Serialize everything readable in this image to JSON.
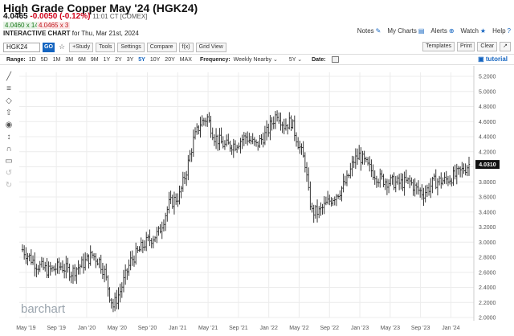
{
  "header": {
    "title": "High Grade Copper May '24 (HGK24)",
    "last": "4.0465",
    "change": "-0.0050 (-0.12%)",
    "time": "11:01 CT [COMEX]",
    "bid": "4.0460 x 14",
    "ask": "4.0465 x 3",
    "chart_label": "INTERACTIVE CHART",
    "chart_for": "for Thu, Mar 21st, 2024"
  },
  "top_links": [
    {
      "label": "Notes",
      "icon": "notes-icon"
    },
    {
      "label": "My Charts",
      "icon": "my-charts-icon"
    },
    {
      "label": "Alerts",
      "icon": "alerts-icon"
    },
    {
      "label": "Watch",
      "icon": "watch-icon"
    },
    {
      "label": "Help",
      "icon": "help-icon"
    }
  ],
  "toolbar": {
    "symbol": "HGK24",
    "go": "GO",
    "buttons": [
      "+Study",
      "Tools",
      "Settings",
      "Compare",
      "f(x)",
      "Grid View"
    ],
    "right_buttons": [
      "Templates",
      "Print",
      "Clear",
      "↗"
    ]
  },
  "range_bar": {
    "range_label": "Range:",
    "ranges": [
      "1D",
      "5D",
      "1M",
      "3M",
      "6M",
      "9M",
      "1Y",
      "2Y",
      "3Y",
      "5Y",
      "10Y",
      "20Y",
      "MAX"
    ],
    "active_range": "5Y",
    "frequency_label": "Frequency:",
    "frequency": "Weekly Nearby",
    "period": "5Y",
    "date_label": "Date:",
    "tutorial": "tutorial"
  },
  "draw_tools": [
    "line-tool-icon",
    "fib-tool-icon",
    "shape-tool-icon",
    "arrow-tool-icon",
    "eye-tool-icon",
    "measure-tool-icon",
    "magnet-tool-icon",
    "lock-tool-icon",
    "undo-tool-icon",
    "redo-tool-icon"
  ],
  "colors": {
    "bar": "#222222",
    "price_box": "#111111",
    "grid": "#ececec",
    "accent": "#1565c0",
    "down": "#d0021b"
  },
  "chart_data": {
    "type": "bar",
    "subtype": "ohlc",
    "frequency": "weekly",
    "y_axis": {
      "position": "right",
      "min": 2.0,
      "max": 5.2,
      "step": 0.2,
      "ticks": [
        "5.2000",
        "5.0000",
        "4.8000",
        "4.6000",
        "4.4000",
        "4.2000",
        "4.0000",
        "3.8000",
        "3.6000",
        "3.4000",
        "3.2000",
        "3.0000",
        "2.8000",
        "2.6000",
        "2.4000",
        "2.2000",
        "2.0000"
      ]
    },
    "x_axis": {
      "ticks": [
        "May '19",
        "Sep '19",
        "Jan '20",
        "May '20",
        "Sep '20",
        "Jan '21",
        "May '21",
        "Sep '21",
        "Jan '22",
        "May '22",
        "Sep '22",
        "Jan '23",
        "May '23",
        "Sep '23",
        "Jan '24"
      ]
    },
    "last_price_label": "4.0310",
    "anchors": [
      [
        0,
        2.9
      ],
      [
        8,
        2.7
      ],
      [
        15,
        2.62
      ],
      [
        22,
        2.68
      ],
      [
        28,
        2.6
      ],
      [
        35,
        2.72
      ],
      [
        40,
        2.83
      ],
      [
        44,
        2.75
      ],
      [
        47,
        2.6
      ],
      [
        50,
        2.3
      ],
      [
        52,
        2.15
      ],
      [
        56,
        2.35
      ],
      [
        62,
        2.75
      ],
      [
        70,
        2.98
      ],
      [
        78,
        3.12
      ],
      [
        84,
        3.5
      ],
      [
        90,
        3.62
      ],
      [
        94,
        3.95
      ],
      [
        98,
        4.35
      ],
      [
        102,
        4.58
      ],
      [
        106,
        4.65
      ],
      [
        110,
        4.4
      ],
      [
        116,
        4.28
      ],
      [
        122,
        4.3
      ],
      [
        128,
        4.4
      ],
      [
        134,
        4.28
      ],
      [
        140,
        4.45
      ],
      [
        146,
        4.72
      ],
      [
        150,
        4.55
      ],
      [
        154,
        4.6
      ],
      [
        158,
        4.32
      ],
      [
        162,
        4.05
      ],
      [
        164,
        3.65
      ],
      [
        166,
        3.4
      ],
      [
        170,
        3.4
      ],
      [
        176,
        3.55
      ],
      [
        182,
        3.68
      ],
      [
        186,
        3.82
      ],
      [
        190,
        4.08
      ],
      [
        193,
        4.15
      ],
      [
        198,
        4.0
      ],
      [
        204,
        3.85
      ],
      [
        210,
        3.8
      ],
      [
        216,
        3.78
      ],
      [
        222,
        3.8
      ],
      [
        226,
        3.7
      ],
      [
        230,
        3.65
      ],
      [
        236,
        3.8
      ],
      [
        242,
        3.82
      ],
      [
        248,
        3.88
      ],
      [
        252,
        3.95
      ],
      [
        256,
        4.03
      ]
    ]
  }
}
